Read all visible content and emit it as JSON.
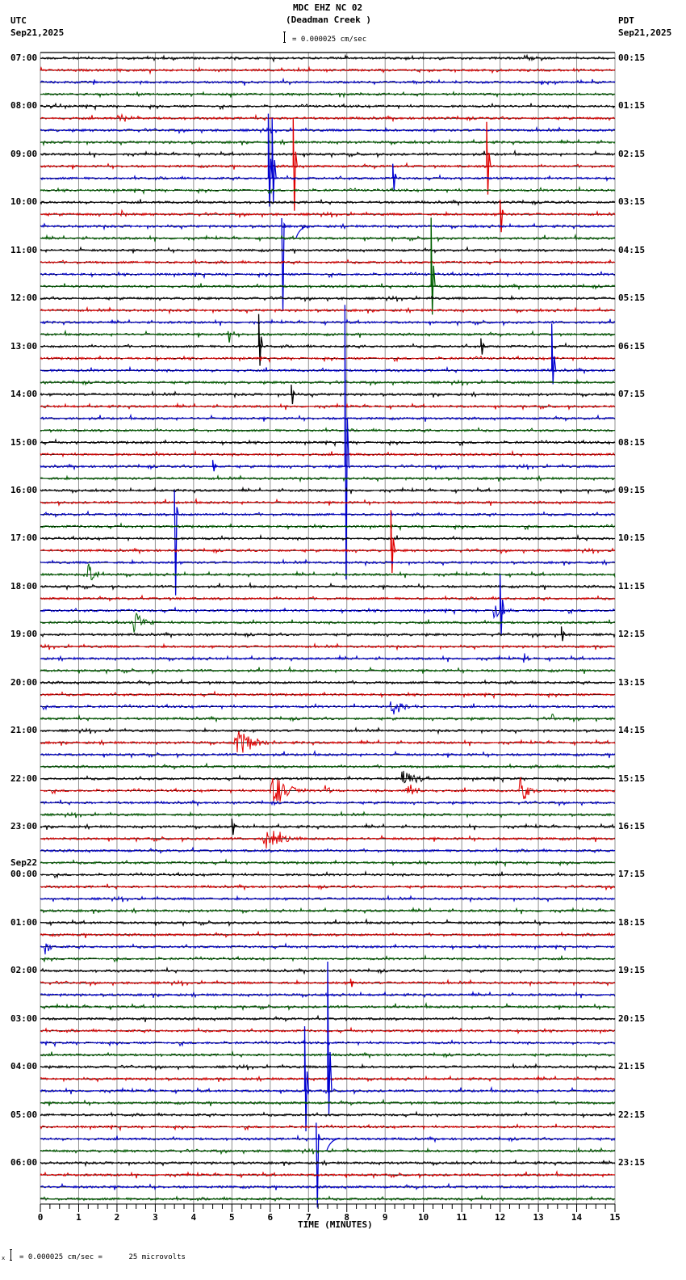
{
  "header": {
    "station": "MDC EHZ NC 02",
    "site": "(Deadman Creek )",
    "left_tz": "UTC",
    "left_date": "Sep21,2025",
    "right_tz": "PDT",
    "right_date": "Sep21,2025",
    "scale_text": "= 0.000025 cm/sec"
  },
  "footer": {
    "scale_text": "= 0.000025 cm/sec =      25 microvolts",
    "prefix": "x"
  },
  "chart_data": {
    "type": "line",
    "title": "MDC EHZ NC 02 (Deadman Creek )",
    "xlabel": "TIME (MINUTES)",
    "ylabel": "",
    "xlim": [
      0,
      15
    ],
    "x_ticks": [
      "0",
      "1",
      "2",
      "3",
      "4",
      "5",
      "6",
      "7",
      "8",
      "9",
      "10",
      "11",
      "12",
      "13",
      "14",
      "15"
    ],
    "grid": true,
    "rows_per_hour": 4,
    "row_count": 96,
    "trace_colors": [
      "#000000",
      "#e00000",
      "#0000d0",
      "#006000"
    ],
    "left_labels": [
      {
        "row": 0,
        "text": "07:00"
      },
      {
        "row": 4,
        "text": "08:00"
      },
      {
        "row": 8,
        "text": "09:00"
      },
      {
        "row": 12,
        "text": "10:00"
      },
      {
        "row": 16,
        "text": "11:00"
      },
      {
        "row": 20,
        "text": "12:00"
      },
      {
        "row": 24,
        "text": "13:00"
      },
      {
        "row": 28,
        "text": "14:00"
      },
      {
        "row": 32,
        "text": "15:00"
      },
      {
        "row": 36,
        "text": "16:00"
      },
      {
        "row": 40,
        "text": "17:00"
      },
      {
        "row": 44,
        "text": "18:00"
      },
      {
        "row": 48,
        "text": "19:00"
      },
      {
        "row": 52,
        "text": "20:00"
      },
      {
        "row": 56,
        "text": "21:00"
      },
      {
        "row": 60,
        "text": "22:00"
      },
      {
        "row": 64,
        "text": "23:00"
      },
      {
        "row": 68,
        "text": "00:00",
        "date": "Sep22"
      },
      {
        "row": 72,
        "text": "01:00"
      },
      {
        "row": 76,
        "text": "02:00"
      },
      {
        "row": 80,
        "text": "03:00"
      },
      {
        "row": 84,
        "text": "04:00"
      },
      {
        "row": 88,
        "text": "05:00"
      },
      {
        "row": 92,
        "text": "06:00"
      }
    ],
    "right_labels": [
      {
        "row": 0,
        "text": "00:15"
      },
      {
        "row": 4,
        "text": "01:15"
      },
      {
        "row": 8,
        "text": "02:15"
      },
      {
        "row": 12,
        "text": "03:15"
      },
      {
        "row": 16,
        "text": "04:15"
      },
      {
        "row": 20,
        "text": "05:15"
      },
      {
        "row": 24,
        "text": "06:15"
      },
      {
        "row": 28,
        "text": "07:15"
      },
      {
        "row": 32,
        "text": "08:15"
      },
      {
        "row": 36,
        "text": "09:15"
      },
      {
        "row": 40,
        "text": "10:15"
      },
      {
        "row": 44,
        "text": "11:15"
      },
      {
        "row": 48,
        "text": "12:15"
      },
      {
        "row": 52,
        "text": "13:15"
      },
      {
        "row": 56,
        "text": "14:15"
      },
      {
        "row": 60,
        "text": "15:15"
      },
      {
        "row": 64,
        "text": "16:15"
      },
      {
        "row": 68,
        "text": "17:15"
      },
      {
        "row": 72,
        "text": "18:15"
      },
      {
        "row": 76,
        "text": "19:15"
      },
      {
        "row": 80,
        "text": "20:15"
      },
      {
        "row": 84,
        "text": "21:15"
      },
      {
        "row": 88,
        "text": "22:15"
      },
      {
        "row": 92,
        "text": "23:15"
      }
    ],
    "events": [
      {
        "row": 5,
        "minute": 2.0,
        "type": "burst",
        "dur": 0.9,
        "amp": 4
      },
      {
        "row": 13,
        "minute": 2.1,
        "type": "burst",
        "dur": 0.3,
        "amp": 4
      },
      {
        "row": 6,
        "minute": 6.05,
        "type": "spike",
        "up": 0,
        "down": 0
      },
      {
        "row": 10,
        "minute": 5.95,
        "type": "spike",
        "up": 80,
        "down": 35
      },
      {
        "row": 10,
        "minute": 6.05,
        "type": "spike",
        "up": 75,
        "down": 30
      },
      {
        "row": 9,
        "minute": 6.6,
        "type": "spike",
        "up": 60,
        "down": 55
      },
      {
        "row": 14,
        "minute": 6.3,
        "type": "spike",
        "up": 10,
        "down": 105
      },
      {
        "row": 14,
        "minute": 6.8,
        "type": "decay",
        "up": 0,
        "down": 15
      },
      {
        "row": 10,
        "minute": 9.2,
        "type": "spike",
        "up": 18,
        "down": 15
      },
      {
        "row": 9,
        "minute": 11.65,
        "type": "spike",
        "up": 55,
        "down": 35
      },
      {
        "row": 13,
        "minute": 12.0,
        "type": "spike",
        "up": 18,
        "down": 22
      },
      {
        "row": 19,
        "minute": 10.2,
        "type": "spike",
        "up": 85,
        "down": 35
      },
      {
        "row": 23,
        "minute": 4.9,
        "type": "spike",
        "up": 4,
        "down": 10
      },
      {
        "row": 24,
        "minute": 5.7,
        "type": "spike",
        "up": 40,
        "down": 24
      },
      {
        "row": 24,
        "minute": 11.5,
        "type": "spike",
        "up": 10,
        "down": 10
      },
      {
        "row": 26,
        "minute": 13.35,
        "type": "spike",
        "up": 58,
        "down": 17
      },
      {
        "row": 28,
        "minute": 6.55,
        "type": "spike",
        "up": 12,
        "down": 12
      },
      {
        "row": 34,
        "minute": 7.95,
        "type": "spike",
        "up": 200,
        "down": 140
      },
      {
        "row": 34,
        "minute": 4.5,
        "type": "spike",
        "up": 8,
        "down": 6
      },
      {
        "row": 38,
        "minute": 3.5,
        "type": "spike",
        "up": 30,
        "down": 100
      },
      {
        "row": 41,
        "minute": 9.15,
        "type": "spike",
        "up": 50,
        "down": 28
      },
      {
        "row": 43,
        "minute": 1.2,
        "type": "burst",
        "dur": 0.6,
        "amp": 12
      },
      {
        "row": 46,
        "minute": 12.0,
        "type": "spike",
        "up": 45,
        "down": 30
      },
      {
        "row": 46,
        "minute": 11.8,
        "type": "burst",
        "dur": 0.6,
        "amp": 8
      },
      {
        "row": 47,
        "minute": 2.4,
        "type": "burst",
        "dur": 0.7,
        "amp": 12
      },
      {
        "row": 48,
        "minute": 13.6,
        "type": "spike",
        "up": 10,
        "down": 8
      },
      {
        "row": 50,
        "minute": 12.6,
        "type": "burst",
        "dur": 0.2,
        "amp": 9
      },
      {
        "row": 54,
        "minute": 9.1,
        "type": "burst",
        "dur": 0.9,
        "amp": 9
      },
      {
        "row": 55,
        "minute": 13.35,
        "type": "burst",
        "dur": 0.2,
        "amp": 6
      },
      {
        "row": 57,
        "minute": 5.05,
        "type": "burst",
        "dur": 1.1,
        "amp": 15
      },
      {
        "row": 60,
        "minute": 9.4,
        "type": "burst",
        "dur": 0.9,
        "amp": 10
      },
      {
        "row": 61,
        "minute": 6.0,
        "type": "burst",
        "dur": 1.0,
        "amp": 18
      },
      {
        "row": 61,
        "minute": 7.4,
        "type": "burst",
        "dur": 0.4,
        "amp": 6
      },
      {
        "row": 61,
        "minute": 9.5,
        "type": "burst",
        "dur": 0.6,
        "amp": 11
      },
      {
        "row": 61,
        "minute": 12.5,
        "type": "burst",
        "dur": 0.5,
        "amp": 16
      },
      {
        "row": 64,
        "minute": 5.0,
        "type": "spike",
        "up": 10,
        "down": 10
      },
      {
        "row": 65,
        "minute": 5.8,
        "type": "burst",
        "dur": 1.0,
        "amp": 13
      },
      {
        "row": 74,
        "minute": 0.1,
        "type": "burst",
        "dur": 0.3,
        "amp": 9
      },
      {
        "row": 77,
        "minute": 8.1,
        "type": "spike",
        "up": 5,
        "down": 5
      },
      {
        "row": 86,
        "minute": 6.9,
        "type": "spike",
        "up": 80,
        "down": 50
      },
      {
        "row": 86,
        "minute": 7.5,
        "type": "spike",
        "up": 160,
        "down": 30
      },
      {
        "row": 90,
        "minute": 7.2,
        "type": "spike",
        "up": 20,
        "down": 85
      },
      {
        "row": 90,
        "minute": 7.6,
        "type": "decay",
        "up": 0,
        "down": 15
      }
    ]
  }
}
